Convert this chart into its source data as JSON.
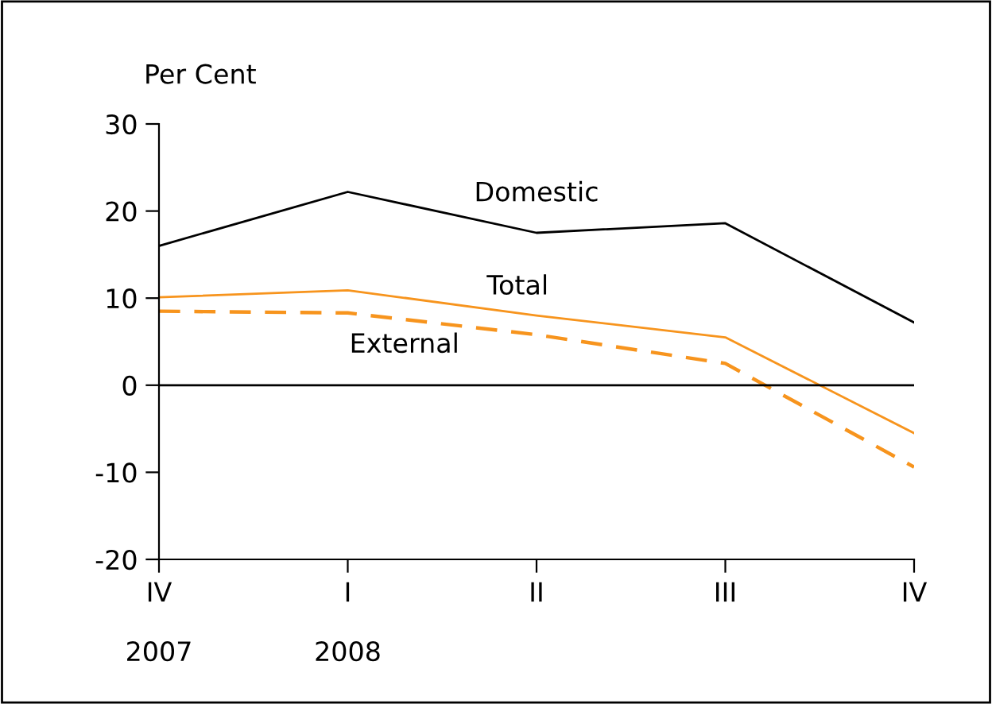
{
  "chart_data": {
    "type": "line",
    "ylabel": "Per Cent",
    "categories": [
      "IV\n\n2007",
      "I\n\n2008",
      "II",
      "III",
      "IV"
    ],
    "series": [
      {
        "name": "Domestic",
        "color": "#000000",
        "values": [
          16.0,
          22.2,
          17.5,
          18.6,
          7.2
        ],
        "line_style": "solid"
      },
      {
        "name": "Total",
        "color": "#f7941d",
        "values": [
          10.1,
          10.9,
          8.0,
          5.5,
          -5.5
        ],
        "line_style": "solid"
      },
      {
        "name": "External",
        "color": "#f7941d",
        "values": [
          8.5,
          8.3,
          5.8,
          2.5,
          -9.4
        ],
        "line_style": "dashed"
      }
    ],
    "ylim": [
      -20,
      30
    ],
    "yticks": [
      -20,
      -10,
      0,
      10,
      20,
      30
    ],
    "ref_lines": [
      {
        "axis": "y",
        "value": 0,
        "color": "#000000"
      }
    ],
    "grid": false,
    "legend": false,
    "marker": "none"
  }
}
